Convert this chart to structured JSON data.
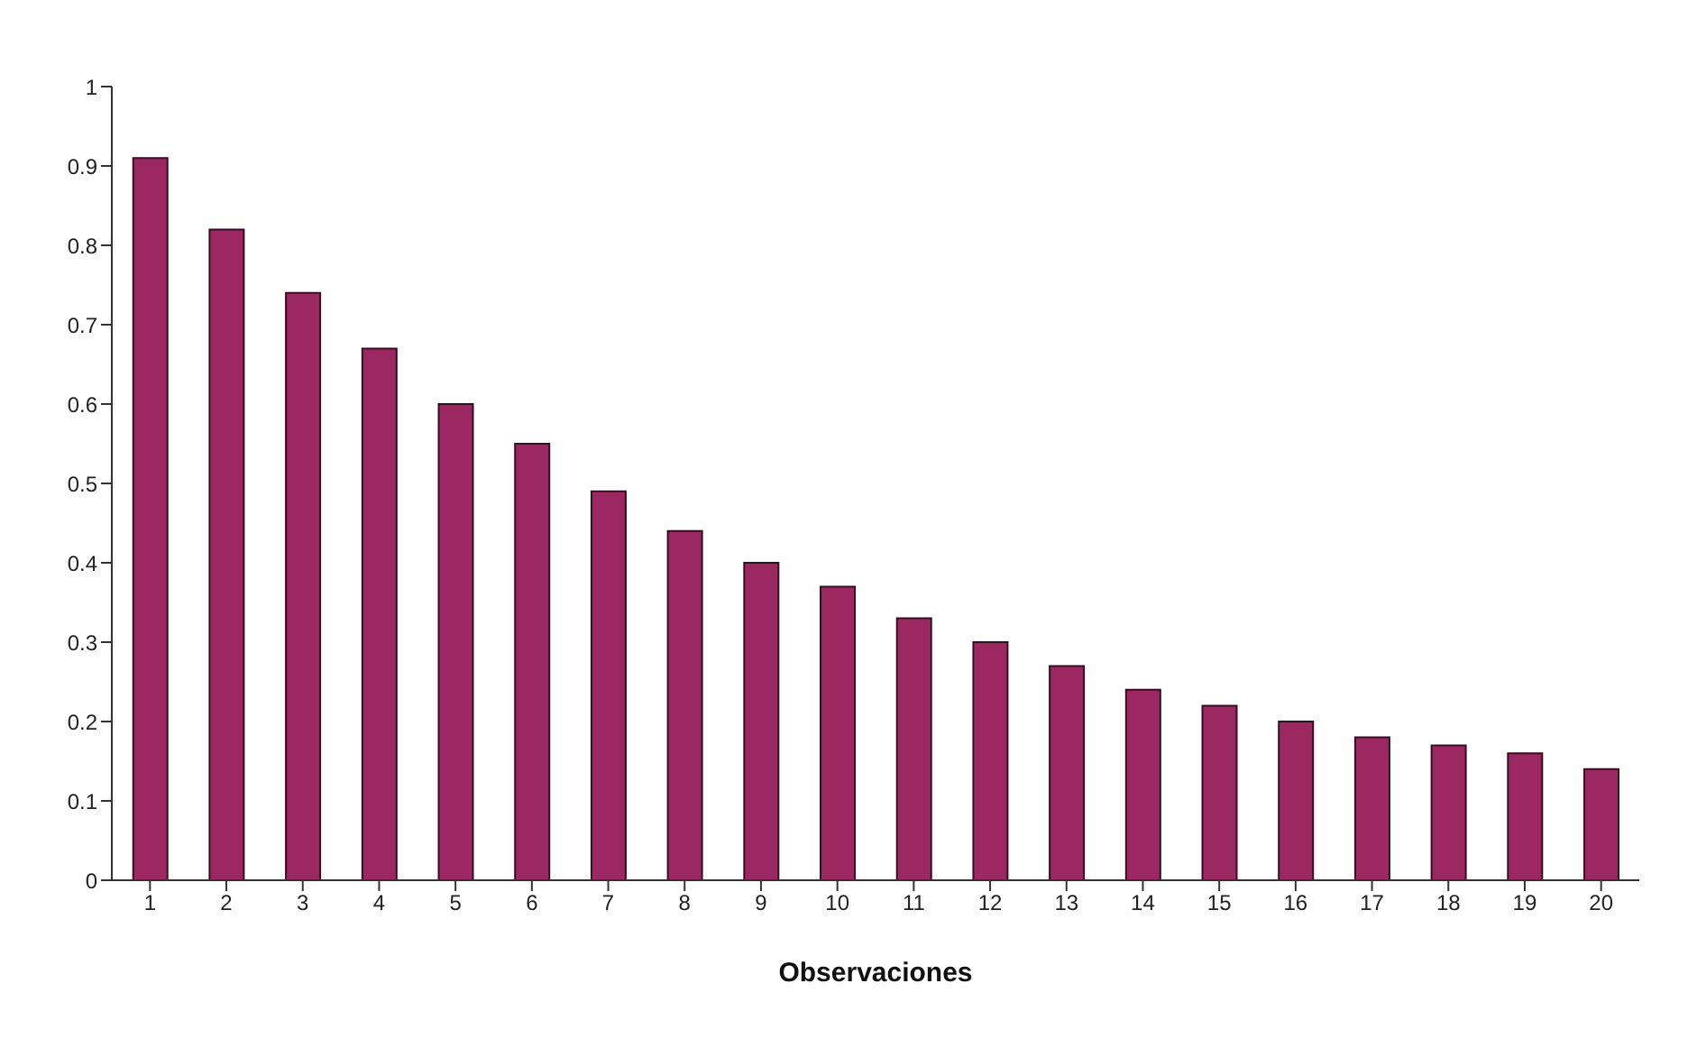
{
  "chart_data": {
    "type": "bar",
    "xlabel": "Observaciones",
    "categories": [
      "1",
      "2",
      "3",
      "4",
      "5",
      "6",
      "7",
      "8",
      "9",
      "10",
      "11",
      "12",
      "13",
      "14",
      "15",
      "16",
      "17",
      "18",
      "19",
      "20"
    ],
    "values": [
      0.91,
      0.82,
      0.74,
      0.67,
      0.6,
      0.55,
      0.49,
      0.44,
      0.4,
      0.37,
      0.33,
      0.3,
      0.27,
      0.24,
      0.22,
      0.2,
      0.18,
      0.17,
      0.16,
      0.14
    ],
    "color": "#9b2860",
    "ylim": [
      0,
      1
    ],
    "yticks": [
      0,
      0.1,
      0.2,
      0.3,
      0.4,
      0.5,
      0.6,
      0.7,
      0.8,
      0.9,
      1
    ]
  }
}
